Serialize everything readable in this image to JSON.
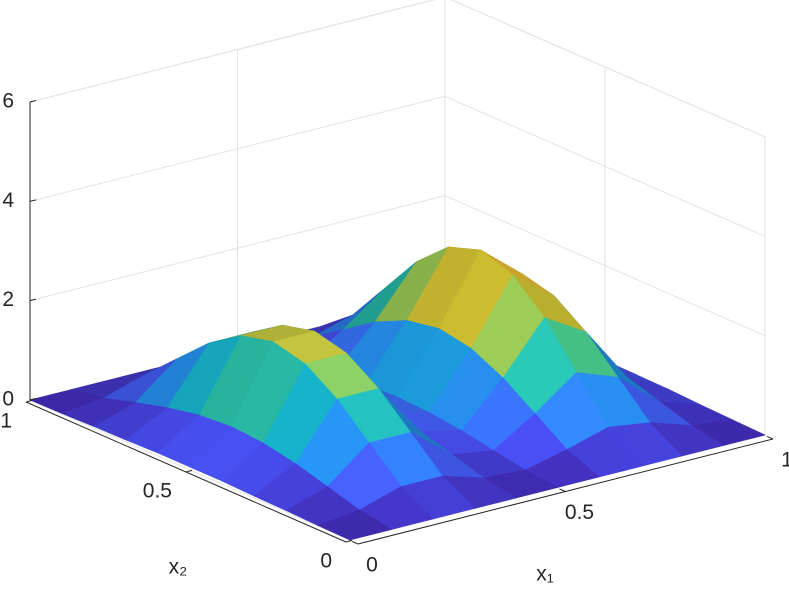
{
  "chart_data": {
    "type": "surface",
    "xlabel": "x₁",
    "ylabel": "x₂",
    "x": [
      0,
      0.1,
      0.2,
      0.3,
      0.4,
      0.5,
      0.6,
      0.7,
      0.8,
      0.9,
      1
    ],
    "y": [
      0,
      0.1,
      0.2,
      0.3,
      0.4,
      0.5,
      0.6,
      0.7,
      0.8,
      0.9,
      1
    ],
    "z": [
      [
        0,
        0,
        0,
        0,
        0,
        0,
        0,
        0,
        0,
        0,
        0
      ],
      [
        0.01,
        0.11,
        0.37,
        0.37,
        0.12,
        0.07,
        0.27,
        0.51,
        0.39,
        0.12,
        0.02
      ],
      [
        0.03,
        0.3,
        0.97,
        0.97,
        0.31,
        0.18,
        0.71,
        1.33,
        1.02,
        0.32,
        0.04
      ],
      [
        0.04,
        0.48,
        1.57,
        1.57,
        0.5,
        0.3,
        1.15,
        2.15,
        1.65,
        0.52,
        0.07
      ],
      [
        0.06,
        0.61,
        2.0,
        2.0,
        0.64,
        0.38,
        1.46,
        2.73,
        2.1,
        0.66,
        0.08
      ],
      [
        0.06,
        0.66,
        2.16,
        2.16,
        0.69,
        0.41,
        1.58,
        2.95,
        2.26,
        0.71,
        0.09
      ],
      [
        0.06,
        0.61,
        2.0,
        2.0,
        0.64,
        0.38,
        1.46,
        2.73,
        2.1,
        0.66,
        0.08
      ],
      [
        0.04,
        0.48,
        1.57,
        1.57,
        0.5,
        0.3,
        1.15,
        2.15,
        1.65,
        0.52,
        0.07
      ],
      [
        0.03,
        0.3,
        0.97,
        0.97,
        0.31,
        0.18,
        0.71,
        1.33,
        1.02,
        0.32,
        0.04
      ],
      [
        0.01,
        0.11,
        0.37,
        0.37,
        0.12,
        0.07,
        0.27,
        0.51,
        0.39,
        0.12,
        0.02
      ],
      [
        0,
        0,
        0,
        0,
        0,
        0,
        0,
        0,
        0,
        0,
        0
      ]
    ],
    "xlim": [
      0,
      1
    ],
    "xticks": [
      0,
      0.5,
      1
    ],
    "ylim": [
      0,
      1
    ],
    "yticks": [
      0,
      0.5,
      1
    ],
    "zlim": [
      0,
      6
    ],
    "zticks": [
      0,
      2,
      4,
      6
    ],
    "grid": true,
    "colormap": "parula"
  }
}
